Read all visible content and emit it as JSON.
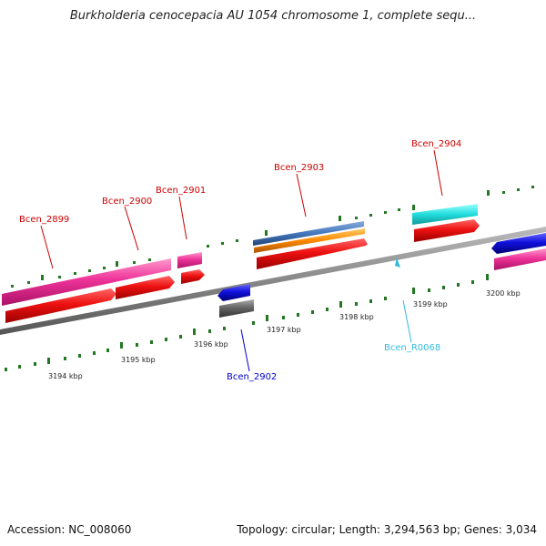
{
  "title": "Burkholderia cenocepacia AU 1054 chromosome 1, complete sequ...",
  "footer": {
    "accession": "Accession: NC_008060",
    "summary": "Topology: circular; Length: 3,294,563 bp; Genes: 3,034"
  },
  "scale": {
    "tick_labels": [
      "3194 kbp",
      "3195 kbp",
      "3196 kbp",
      "3197 kbp",
      "3198 kbp",
      "3199 kbp",
      "3200 kbp"
    ]
  },
  "genes": [
    {
      "label": "Bcen_2899",
      "label_color": "#cc0000"
    },
    {
      "label": "Bcen_2900",
      "label_color": "#cc0000"
    },
    {
      "label": "Bcen_2901",
      "label_color": "#cc0000"
    },
    {
      "label": "Bcen_2903",
      "label_color": "#cc0000"
    },
    {
      "label": "Bcen_2904",
      "label_color": "#cc0000"
    },
    {
      "label": "Bcen_2902",
      "label_color": "#0000cc"
    },
    {
      "label": "Bcen_R0068",
      "label_color": "#33bbdd"
    }
  ],
  "colors": {
    "cds": "#ee1111",
    "gene": "#ee3399",
    "rrna": "#4477bb",
    "misc": "#ff8800",
    "trna": "#22dddd",
    "reverse": "#1111dd",
    "pseudo": "#666666",
    "ticks": "#227722",
    "backbone": "#888888"
  }
}
